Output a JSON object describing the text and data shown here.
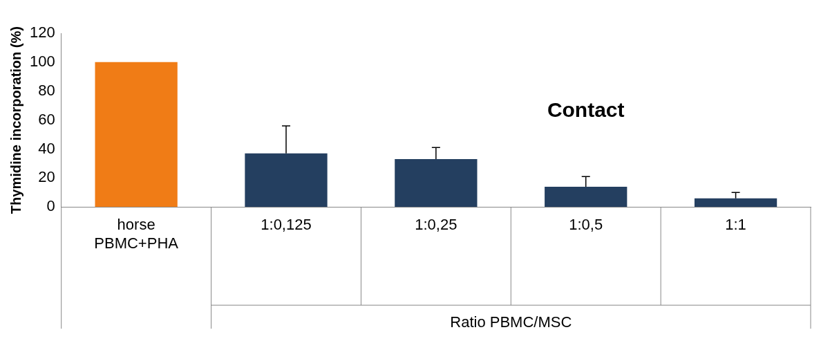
{
  "chart_data": {
    "type": "bar",
    "ylabel": "Thymidine incorporation (%)",
    "xlabel": "Ratio PBMC/MSC",
    "categories": [
      "horse PBMC+PHA",
      "1:0,125",
      "1:0,25",
      "1:0,5",
      "1:1"
    ],
    "values": [
      100,
      37,
      33,
      14,
      6
    ],
    "colors": [
      "#f07c16",
      "#243f60",
      "#243f60",
      "#243f60",
      "#243f60"
    ],
    "errors": [
      null,
      [
        37,
        56
      ],
      [
        33,
        41
      ],
      [
        14,
        21
      ],
      [
        6,
        10
      ]
    ],
    "ylim": [
      0,
      120
    ],
    "yticks": [
      0,
      20,
      40,
      60,
      80,
      100,
      120
    ],
    "grid": false,
    "legend": false,
    "annotations": [
      "Contact"
    ]
  }
}
